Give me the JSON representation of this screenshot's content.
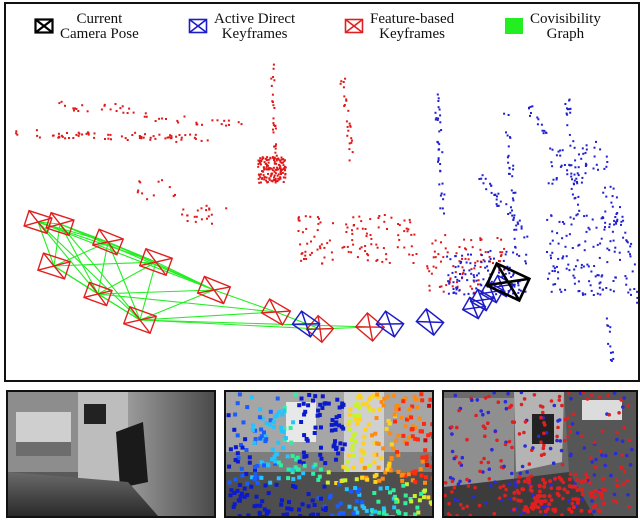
{
  "legend": [
    {
      "key": "current",
      "line1": "Current",
      "line2": "Camera Pose",
      "color": "#000000",
      "icon": "crossed-box-icon"
    },
    {
      "key": "direct",
      "line1": "Active Direct",
      "line2": "Keyframes",
      "color": "#1c1cc8",
      "icon": "crossed-box-icon"
    },
    {
      "key": "feature",
      "line1": "Feature-based",
      "line2": "Keyframes",
      "color": "#e02020",
      "icon": "crossed-box-icon"
    },
    {
      "key": "covis",
      "line1": "Covisibility",
      "line2": "Graph",
      "color": "#22ee22",
      "icon": "filled-square-icon"
    }
  ],
  "colors": {
    "feature": "#e02020",
    "direct": "#1c1cc8",
    "current": "#000000",
    "covis": "#22ee22",
    "points_red": "#e01818",
    "points_blue": "#2020d0"
  },
  "thumbnails": [
    {
      "name": "grayscale-frame"
    },
    {
      "name": "depth-colormap-frame"
    },
    {
      "name": "tracked-points-frame"
    }
  ]
}
